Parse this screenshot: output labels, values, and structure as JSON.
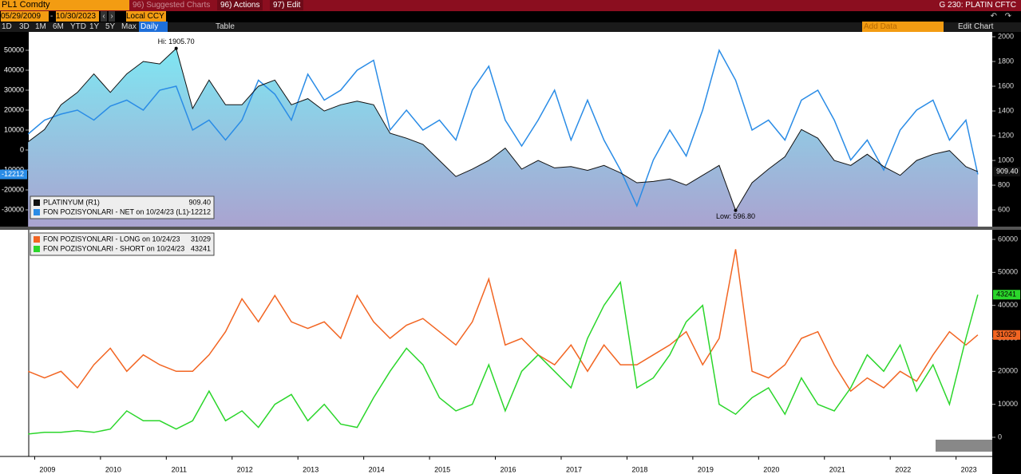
{
  "toolbar": {
    "security": "PL1 Comdty",
    "suggested": "96) Suggested Charts",
    "actions": "96) Actions",
    "edit": "97) Edit",
    "title": "G 230: PLATIN CFTC",
    "start_date": "05/29/2009",
    "date_separator": "-",
    "end_date": "10/30/2023",
    "currency": "Local CCY",
    "periods": [
      "1D",
      "3D",
      "1M",
      "6M",
      "YTD",
      "1Y",
      "5Y",
      "Max"
    ],
    "frequency": "Daily",
    "table": "Table",
    "add_data": "Add Data",
    "edit_chart": "Edit Chart"
  },
  "chart_data": [
    {
      "type": "line",
      "legend": "lower left",
      "x": [
        2009.4,
        2009.65,
        2009.9,
        2010.15,
        2010.4,
        2010.65,
        2010.9,
        2011.15,
        2011.4,
        2011.65,
        2011.9,
        2012.15,
        2012.4,
        2012.65,
        2012.9,
        2013.15,
        2013.4,
        2013.65,
        2013.9,
        2014.15,
        2014.4,
        2014.65,
        2014.9,
        2015.15,
        2015.4,
        2015.65,
        2015.9,
        2016.15,
        2016.4,
        2016.65,
        2016.9,
        2017.15,
        2017.4,
        2017.65,
        2017.9,
        2018.15,
        2018.4,
        2018.65,
        2018.9,
        2019.15,
        2019.4,
        2019.65,
        2019.9,
        2020.15,
        2020.4,
        2020.65,
        2020.9,
        2021.15,
        2021.4,
        2021.65,
        2021.9,
        2022.15,
        2022.4,
        2022.65,
        2022.9,
        2023.15,
        2023.4,
        2023.65,
        2023.83
      ],
      "xlim": [
        2009.41,
        2024.05
      ],
      "ylim": [
        -38400,
        59200
      ],
      "yticks": [
        50000,
        40000,
        30000,
        20000,
        10000,
        0,
        -10000,
        -20000,
        -30000
      ],
      "y2lim": [
        465,
        2039
      ],
      "y2ticks": [
        2000,
        1800,
        1600,
        1400,
        1200,
        1000,
        800,
        600
      ],
      "series": [
        {
          "name": "PLATINYUM (R1)",
          "color": "#111111",
          "axis": "y2",
          "area": true,
          "last_value_label": "909.40",
          "values": [
            1150,
            1250,
            1450,
            1550,
            1700,
            1550,
            1700,
            1800,
            1780,
            1905.7,
            1420,
            1650,
            1450,
            1450,
            1600,
            1650,
            1450,
            1500,
            1400,
            1450,
            1480,
            1450,
            1220,
            1180,
            1130,
            1000,
            870,
            930,
            1000,
            1100,
            930,
            1000,
            940,
            950,
            920,
            960,
            900,
            820,
            830,
            850,
            800,
            880,
            960,
            596.8,
            820,
            930,
            1030,
            1250,
            1180,
            1000,
            960,
            1050,
            950,
            880,
            1000,
            1050,
            1080,
            950,
            909.4
          ]
        },
        {
          "name": "FON POZISYONLARI - NET on 10/24/23 (L1)",
          "color": "#2a8ce6",
          "axis": "y",
          "values": [
            8000,
            15000,
            18000,
            20000,
            15000,
            22000,
            25000,
            20000,
            30000,
            32000,
            10000,
            15000,
            5000,
            15000,
            35000,
            28000,
            15000,
            38000,
            25000,
            30000,
            40000,
            45000,
            10000,
            20000,
            10000,
            15000,
            5000,
            30000,
            42000,
            15000,
            2000,
            15000,
            30000,
            5000,
            25000,
            5000,
            -10000,
            -28000,
            -5000,
            10000,
            -3000,
            20000,
            50000,
            35000,
            10000,
            15000,
            5000,
            25000,
            30000,
            15000,
            -5000,
            5000,
            -10000,
            10000,
            20000,
            25000,
            5000,
            15000,
            -12212
          ]
        }
      ],
      "annotations": [
        {
          "text": "Hi: 1905.70",
          "x": 2011.65,
          "y": 1905.7,
          "axis": "y2",
          "position": "above"
        },
        {
          "text": "Low: 596.80",
          "x": 2020.15,
          "y": 596.8,
          "axis": "y2",
          "position": "below"
        }
      ]
    },
    {
      "type": "line",
      "legend": "upper left",
      "x": [
        2009.4,
        2009.65,
        2009.9,
        2010.15,
        2010.4,
        2010.65,
        2010.9,
        2011.15,
        2011.4,
        2011.65,
        2011.9,
        2012.15,
        2012.4,
        2012.65,
        2012.9,
        2013.15,
        2013.4,
        2013.65,
        2013.9,
        2014.15,
        2014.4,
        2014.65,
        2014.9,
        2015.15,
        2015.4,
        2015.65,
        2015.9,
        2016.15,
        2016.4,
        2016.65,
        2016.9,
        2017.15,
        2017.4,
        2017.65,
        2017.9,
        2018.15,
        2018.4,
        2018.65,
        2018.9,
        2019.15,
        2019.4,
        2019.65,
        2019.9,
        2020.15,
        2020.4,
        2020.65,
        2020.9,
        2021.15,
        2021.4,
        2021.65,
        2021.9,
        2022.15,
        2022.4,
        2022.65,
        2022.9,
        2023.15,
        2023.4,
        2023.65,
        2023.83
      ],
      "xlim": [
        2009.41,
        2024.05
      ],
      "xticks": [
        {
          "value": 2009.5,
          "label": "2009"
        },
        {
          "value": 2010.5,
          "label": "2010"
        },
        {
          "value": 2011.5,
          "label": "2011"
        },
        {
          "value": 2012.5,
          "label": "2012"
        },
        {
          "value": 2013.5,
          "label": "2013"
        },
        {
          "value": 2014.5,
          "label": "2014"
        },
        {
          "value": 2015.5,
          "label": "2015"
        },
        {
          "value": 2016.5,
          "label": "2016"
        },
        {
          "value": 2017.5,
          "label": "2017"
        },
        {
          "value": 2018.5,
          "label": "2018"
        },
        {
          "value": 2019.5,
          "label": "2019"
        },
        {
          "value": 2020.5,
          "label": "2020"
        },
        {
          "value": 2021.5,
          "label": "2021"
        },
        {
          "value": 2022.5,
          "label": "2022"
        },
        {
          "value": 2023.5,
          "label": "2023"
        }
      ],
      "y2lim": [
        -5806,
        62903
      ],
      "y2ticks": [
        60000,
        50000,
        40000,
        30000,
        20000,
        10000,
        0
      ],
      "series": [
        {
          "name": "FON POZISYONLARI - LONG on 10/24/23",
          "color": "#f26522",
          "axis": "y2",
          "values": [
            20000,
            18000,
            20000,
            15000,
            22000,
            27000,
            20000,
            25000,
            22000,
            20000,
            20000,
            25000,
            32000,
            42000,
            35000,
            43000,
            35000,
            33000,
            35000,
            30000,
            43000,
            35000,
            30000,
            34000,
            36000,
            32000,
            28000,
            35000,
            48000,
            28000,
            30000,
            25000,
            22000,
            28000,
            20000,
            28000,
            22000,
            22000,
            25000,
            28000,
            32000,
            22000,
            30000,
            57000,
            20000,
            18000,
            22000,
            30000,
            32000,
            22000,
            14000,
            18000,
            15000,
            20000,
            17000,
            25000,
            32000,
            28000,
            31029
          ]
        },
        {
          "name": "FON POZISYONLARI - SHORT on 10/24/23",
          "color": "#2bd62b",
          "axis": "y2",
          "values": [
            1000,
            1500,
            1500,
            2000,
            1500,
            2500,
            8000,
            5000,
            5000,
            2500,
            5000,
            14000,
            5000,
            8000,
            3000,
            10000,
            13000,
            5000,
            10000,
            4000,
            3000,
            12000,
            20000,
            27000,
            22000,
            12000,
            8000,
            10000,
            22000,
            8000,
            20000,
            25000,
            20000,
            15000,
            30000,
            40000,
            47000,
            15000,
            18000,
            25000,
            35000,
            40000,
            10000,
            7000,
            12000,
            15000,
            7000,
            18000,
            10000,
            8000,
            15000,
            25000,
            20000,
            28000,
            14000,
            22000,
            10000,
            30000,
            43241
          ]
        }
      ]
    }
  ]
}
